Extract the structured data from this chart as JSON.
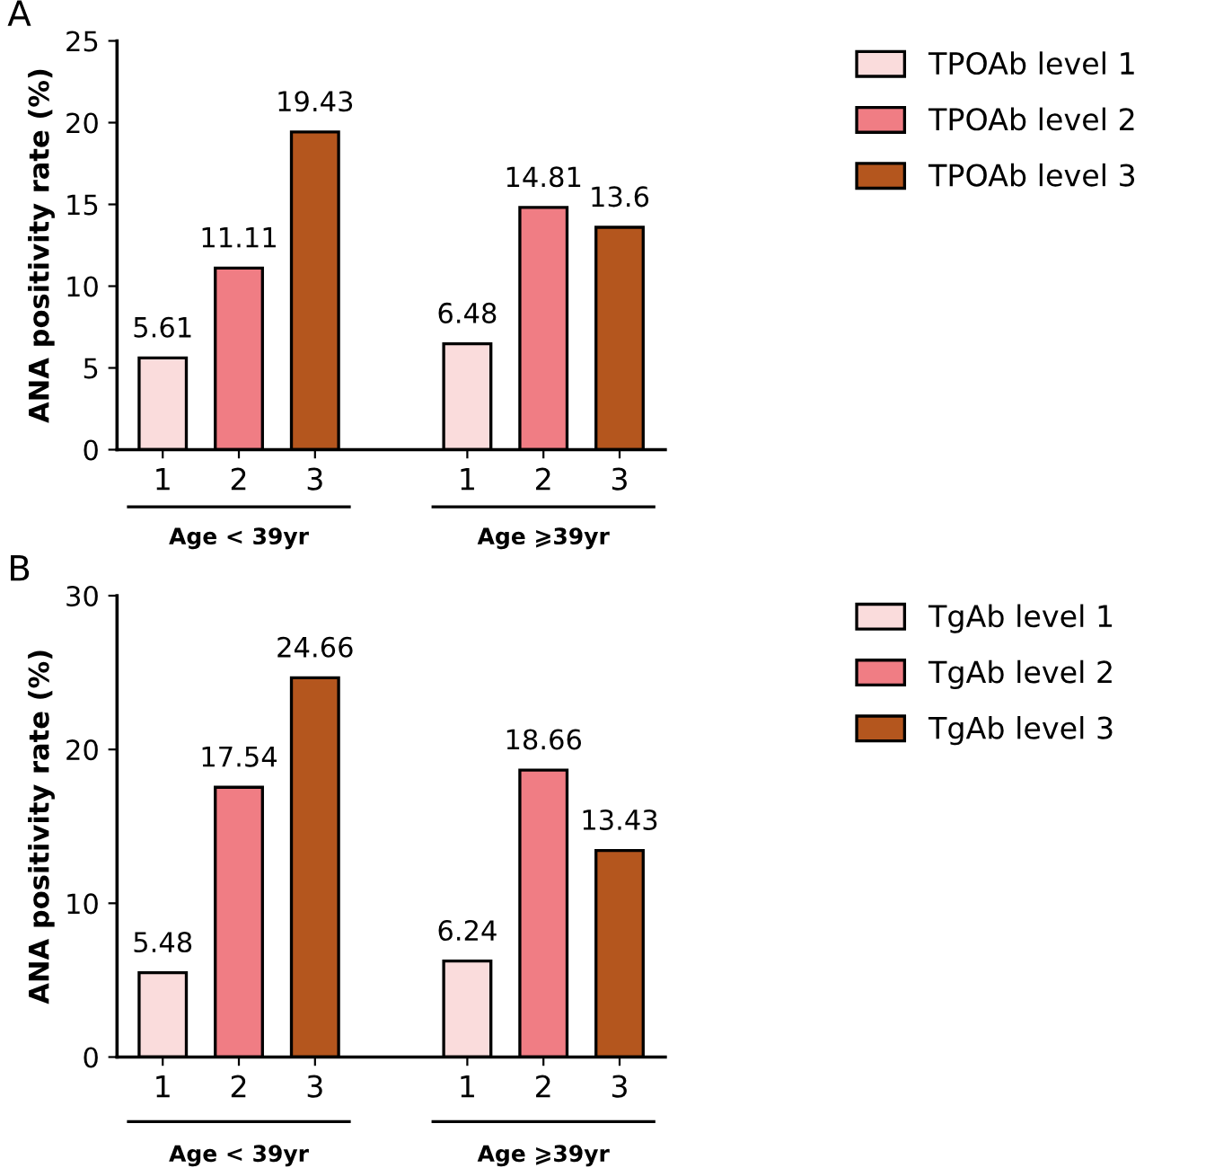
{
  "chart_data": [
    {
      "type": "bar",
      "title": "A",
      "ylabel": "ANA positivity rate (%)",
      "categories": [
        "1",
        "2",
        "3",
        null,
        "1",
        "2",
        "3"
      ],
      "ylim": [
        0,
        25
      ],
      "yticks": [
        0,
        5,
        10,
        15,
        20,
        25
      ],
      "grid": false,
      "legend": "top right",
      "data_labels": true,
      "annotations": [
        "Age < 39yr",
        "Age ⩾39yr"
      ],
      "series": [
        {
          "name": "TPOAb level 1",
          "color": "#fadcdc",
          "values": [
            5.61,
            null,
            null,
            null,
            6.48,
            null,
            null
          ]
        },
        {
          "name": "TPOAb level 2",
          "color": "#f07d84",
          "values": [
            null,
            11.11,
            null,
            null,
            null,
            14.81,
            null
          ]
        },
        {
          "name": "TPOAb level 3",
          "color": "#b4561e",
          "values": [
            null,
            null,
            19.43,
            null,
            null,
            null,
            13.6
          ]
        }
      ]
    },
    {
      "type": "bar",
      "title": "B",
      "ylabel": "ANA positivity rate (%)",
      "categories": [
        "1",
        "2",
        "3",
        null,
        "1",
        "2",
        "3"
      ],
      "ylim": [
        0,
        30
      ],
      "yticks": [
        0,
        10,
        20,
        30
      ],
      "grid": false,
      "legend": "top right",
      "data_labels": true,
      "annotations": [
        "Age < 39yr",
        "Age ⩾39yr"
      ],
      "series": [
        {
          "name": "TgAb level 1",
          "color": "#fadcdc",
          "values": [
            5.48,
            null,
            null,
            null,
            6.24,
            null,
            null
          ]
        },
        {
          "name": "TgAb level 2",
          "color": "#f07d84",
          "values": [
            null,
            17.54,
            null,
            null,
            null,
            18.66,
            null
          ]
        },
        {
          "name": "TgAb level 3",
          "color": "#b4561e",
          "values": [
            null,
            null,
            24.66,
            null,
            null,
            null,
            13.43
          ]
        }
      ]
    }
  ]
}
